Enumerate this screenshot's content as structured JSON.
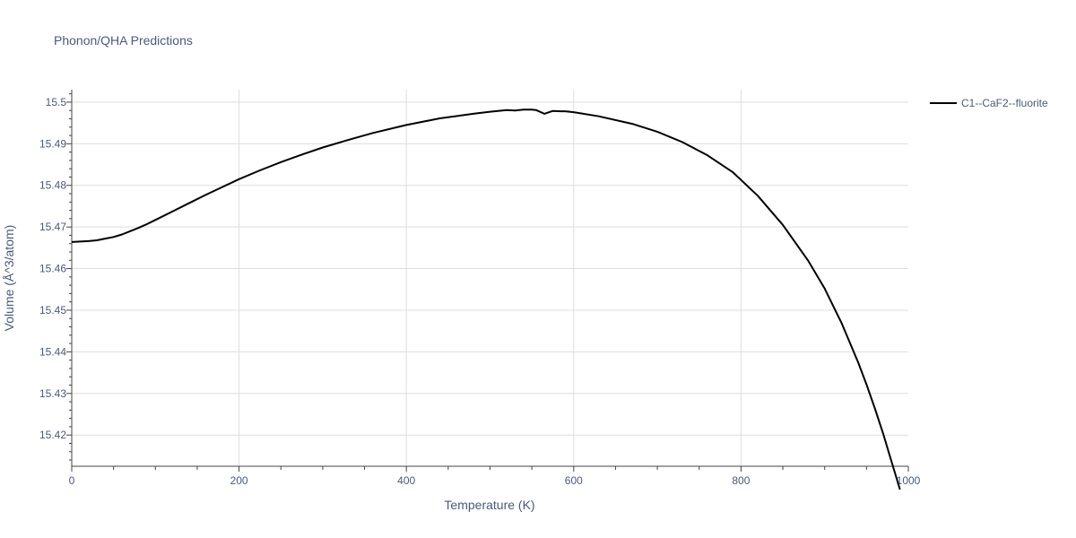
{
  "chart_data": {
    "type": "line",
    "title": "Phonon/QHA Predictions",
    "xlabel": "Temperature (K)",
    "ylabel": "Volume (Å^3/atom)",
    "xlim": [
      0,
      1000
    ],
    "ylim": [
      15.4125,
      15.503
    ],
    "x_ticks": [
      0,
      200,
      400,
      600,
      800,
      1000
    ],
    "y_ticks": [
      15.42,
      15.43,
      15.44,
      15.45,
      15.46,
      15.47,
      15.48,
      15.49,
      15.5
    ],
    "y_tick_labels": [
      "15.42",
      "15.43",
      "15.44",
      "15.45",
      "15.46",
      "15.47",
      "15.48",
      "15.49",
      "15.5"
    ],
    "grid": true,
    "legend_position": "top-right",
    "series": [
      {
        "name": "C1--CaF2--fluorite",
        "color": "#000000",
        "x": [
          0,
          10,
          20,
          30,
          40,
          50,
          60,
          70,
          80,
          90,
          100,
          120,
          140,
          160,
          180,
          200,
          225,
          250,
          275,
          300,
          330,
          360,
          400,
          440,
          480,
          500,
          520,
          530,
          540,
          550,
          555,
          565,
          575,
          585,
          590,
          600,
          630,
          670,
          700,
          730,
          760,
          790,
          820,
          850,
          880,
          900,
          920,
          940,
          950,
          960,
          970,
          980,
          990
        ],
        "y": [
          15.4664,
          15.4665,
          15.4666,
          15.4668,
          15.4672,
          15.4676,
          15.4682,
          15.469,
          15.4698,
          15.4707,
          15.4717,
          15.4737,
          15.4757,
          15.4777,
          15.4796,
          15.4815,
          15.4836,
          15.4856,
          15.4874,
          15.4891,
          15.4909,
          15.4926,
          15.4945,
          15.4961,
          15.4972,
          15.4977,
          15.4981,
          15.498,
          15.4982,
          15.4982,
          15.4981,
          15.4972,
          15.4979,
          15.4978,
          15.4978,
          15.4976,
          15.4966,
          15.4948,
          15.4929,
          15.4904,
          15.4872,
          15.4832,
          15.4775,
          15.4705,
          15.462,
          15.4552,
          15.447,
          15.4375,
          15.4322,
          15.4264,
          15.4203,
          15.4136,
          15.4069
        ]
      }
    ]
  }
}
